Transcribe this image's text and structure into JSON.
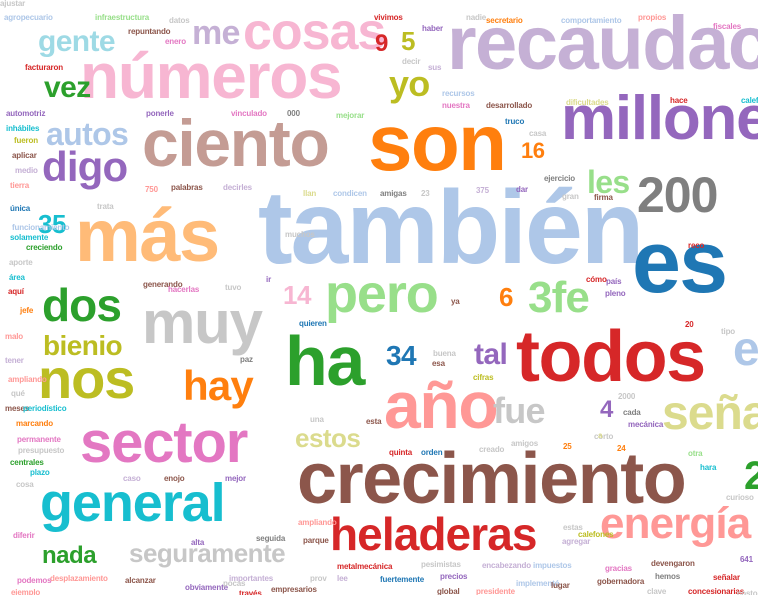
{
  "words": [
    {
      "text": "también",
      "color": "#aec7e8"
    },
    {
      "text": "crecimiento",
      "color": "#8c564b"
    },
    {
      "text": "es",
      "color": "#1f77b4"
    },
    {
      "text": "son",
      "color": "#ff7f0e"
    },
    {
      "text": "todos",
      "color": "#d62728"
    },
    {
      "text": "ciento",
      "color": "#c49c94"
    },
    {
      "text": "más",
      "color": "#ffbb78"
    },
    {
      "text": "números",
      "color": "#f7b6d2"
    },
    {
      "text": "recaudación",
      "color": "#c5b0d5"
    },
    {
      "text": "millones",
      "color": "#9467bd"
    },
    {
      "text": "año",
      "color": "#ff9896"
    },
    {
      "text": "ha",
      "color": "#2ca02c"
    },
    {
      "text": "sector",
      "color": "#e377c2"
    },
    {
      "text": "pero",
      "color": "#98df8a"
    },
    {
      "text": "muy",
      "color": "#c7c7c7"
    },
    {
      "text": "nos",
      "color": "#bcbd22"
    },
    {
      "text": "general",
      "color": "#17becf"
    },
    {
      "text": "200",
      "color": "#7f7f7f"
    },
    {
      "text": "cosas",
      "color": "#f7b6d2"
    },
    {
      "text": "heladeras",
      "color": "#d62728"
    },
    {
      "text": "energía",
      "color": "#ff9896"
    },
    {
      "text": "hay",
      "color": "#ff7f0e"
    },
    {
      "text": "dos",
      "color": "#2ca02c"
    },
    {
      "text": "seguramente",
      "color": "#c7c7c7"
    },
    {
      "text": "señal",
      "color": "#dbdb8d"
    },
    {
      "text": "3fe",
      "color": "#98df8a"
    },
    {
      "text": "digo",
      "color": "#9467bd"
    },
    {
      "text": "autos",
      "color": "#aec7e8"
    },
    {
      "text": "fue",
      "color": "#c7c7c7"
    },
    {
      "text": "me",
      "color": "#c5b0d5"
    },
    {
      "text": "gente",
      "color": "#9edae5"
    },
    {
      "text": "yo",
      "color": "#bcbd22"
    },
    {
      "text": "vez",
      "color": "#2ca02c"
    },
    {
      "text": "bienio",
      "color": "#bcbd22"
    },
    {
      "text": "tal",
      "color": "#9467bd"
    },
    {
      "text": "nada",
      "color": "#2ca02c"
    },
    {
      "text": "estos",
      "color": "#dbdb8d"
    },
    {
      "text": "les",
      "color": "#98df8a"
    },
    {
      "text": "35",
      "color": "#17becf"
    },
    {
      "text": "34",
      "color": "#1f77b4"
    },
    {
      "text": "16",
      "color": "#ff7f0e"
    },
    {
      "text": "14",
      "color": "#f7b6d2"
    },
    {
      "text": "9",
      "color": "#d62728"
    },
    {
      "text": "5",
      "color": "#bcbd22"
    },
    {
      "text": "6",
      "color": "#ff7f0e"
    },
    {
      "text": "4",
      "color": "#9467bd"
    },
    {
      "text": "e",
      "color": "#aec7e8"
    },
    {
      "text": "agropecuario",
      "color": "#aec7e8"
    },
    {
      "text": "infraestructura",
      "color": "#98df8a"
    },
    {
      "text": "datos",
      "color": "#c7c7c7"
    },
    {
      "text": "vivimos",
      "color": "#d62728"
    },
    {
      "text": "recursos",
      "color": "#aec7e8"
    },
    {
      "text": "nadie",
      "color": "#c7c7c7"
    },
    {
      "text": "secretario",
      "color": "#ff7f0e"
    },
    {
      "text": "comportamiento",
      "color": "#aec7e8"
    },
    {
      "text": "propios",
      "color": "#ff9896"
    },
    {
      "text": "fiscales",
      "color": "#e377c2"
    },
    {
      "text": "repuntando",
      "color": "#8c564b"
    },
    {
      "text": "enero",
      "color": "#e377c2"
    },
    {
      "text": "haber",
      "color": "#9467bd"
    },
    {
      "text": "decir",
      "color": "#c7c7c7"
    },
    {
      "text": "sus",
      "color": "#c5b0d5"
    },
    {
      "text": "facturaron",
      "color": "#d62728"
    },
    {
      "text": "automotriz",
      "color": "#9467bd"
    },
    {
      "text": "inhábiles",
      "color": "#17becf"
    },
    {
      "text": "fueron",
      "color": "#bcbd22"
    },
    {
      "text": "aplicar",
      "color": "#8c564b"
    },
    {
      "text": "medio",
      "color": "#c5b0d5"
    },
    {
      "text": "tierra",
      "color": "#ff9896"
    },
    {
      "text": "ponerle",
      "color": "#9467bd"
    },
    {
      "text": "vinculado",
      "color": "#e377c2"
    },
    {
      "text": "000",
      "color": "#7f7f7f"
    },
    {
      "text": "mejorar",
      "color": "#98df8a"
    },
    {
      "text": "nuestra",
      "color": "#e377c2"
    },
    {
      "text": "desarrollado",
      "color": "#8c564b"
    },
    {
      "text": "truco",
      "color": "#1f77b4"
    },
    {
      "text": "casa",
      "color": "#c7c7c7"
    },
    {
      "text": "dificultades",
      "color": "#dbdb8d"
    },
    {
      "text": "hace",
      "color": "#d62728"
    },
    {
      "text": "calefores",
      "color": "#17becf"
    },
    {
      "text": "ejercicio",
      "color": "#7f7f7f"
    },
    {
      "text": "gran",
      "color": "#c7c7c7"
    },
    {
      "text": "750",
      "color": "#ff9896"
    },
    {
      "text": "palabras",
      "color": "#8c564b"
    },
    {
      "text": "decirles",
      "color": "#c5b0d5"
    },
    {
      "text": "llan",
      "color": "#dbdb8d"
    },
    {
      "text": "condicen",
      "color": "#aec7e8"
    },
    {
      "text": "amigas",
      "color": "#7f7f7f"
    },
    {
      "text": "23",
      "color": "#c7c7c7"
    },
    {
      "text": "375",
      "color": "#c5b0d5"
    },
    {
      "text": "dar",
      "color": "#9467bd"
    },
    {
      "text": "firma",
      "color": "#8c564b"
    },
    {
      "text": "única",
      "color": "#1f77b4"
    },
    {
      "text": "funcionamiento",
      "color": "#aec7e8"
    },
    {
      "text": "trata",
      "color": "#c7c7c7"
    },
    {
      "text": "solamente",
      "color": "#17becf"
    },
    {
      "text": "creciendo",
      "color": "#2ca02c"
    },
    {
      "text": "aporte",
      "color": "#c7c7c7"
    },
    {
      "text": "área",
      "color": "#17becf"
    },
    {
      "text": "aquí",
      "color": "#d62728"
    },
    {
      "text": "jefe",
      "color": "#ff7f0e"
    },
    {
      "text": "generando",
      "color": "#8c564b"
    },
    {
      "text": "hacerlas",
      "color": "#e377c2"
    },
    {
      "text": "tuvo",
      "color": "#c7c7c7"
    },
    {
      "text": "ir",
      "color": "#9467bd"
    },
    {
      "text": "ya",
      "color": "#8c564b"
    },
    {
      "text": "cómo",
      "color": "#d62728"
    },
    {
      "text": "país",
      "color": "#9467bd"
    },
    {
      "text": "pleno",
      "color": "#9467bd"
    },
    {
      "text": "quieren",
      "color": "#1f77b4"
    },
    {
      "text": "buena",
      "color": "#c7c7c7"
    },
    {
      "text": "esa",
      "color": "#8c564b"
    },
    {
      "text": "20",
      "color": "#d62728"
    },
    {
      "text": "tipo",
      "color": "#c7c7c7"
    },
    {
      "text": "malo",
      "color": "#ff9896"
    },
    {
      "text": "tener",
      "color": "#c5b0d5"
    },
    {
      "text": "paz",
      "color": "#7f7f7f"
    },
    {
      "text": "cifras",
      "color": "#bcbd22"
    },
    {
      "text": "ampliando",
      "color": "#ff9896"
    },
    {
      "text": "qué",
      "color": "#c7c7c7"
    },
    {
      "text": "meses",
      "color": "#8c564b"
    },
    {
      "text": "periodístico",
      "color": "#17becf"
    },
    {
      "text": "marcando",
      "color": "#ff7f0e"
    },
    {
      "text": "permanente",
      "color": "#e377c2"
    },
    {
      "text": "presupuesto",
      "color": "#c7c7c7"
    },
    {
      "text": "centrales",
      "color": "#2ca02c"
    },
    {
      "text": "plazo",
      "color": "#17becf"
    },
    {
      "text": "cosa",
      "color": "#c7c7c7"
    },
    {
      "text": "una",
      "color": "#c7c7c7"
    },
    {
      "text": "esta",
      "color": "#8c564b"
    },
    {
      "text": "cada",
      "color": "#7f7f7f"
    },
    {
      "text": "mecánica",
      "color": "#9467bd"
    },
    {
      "text": "corto",
      "color": "#c7c7c7"
    },
    {
      "text": "amigos",
      "color": "#c7c7c7"
    },
    {
      "text": "24",
      "color": "#ff7f0e"
    },
    {
      "text": "quinta",
      "color": "#d62728"
    },
    {
      "text": "orden",
      "color": "#1f77b4"
    },
    {
      "text": "creado",
      "color": "#c7c7c7"
    },
    {
      "text": "otra",
      "color": "#98df8a"
    },
    {
      "text": "hara",
      "color": "#17becf"
    },
    {
      "text": "curioso",
      "color": "#c7c7c7"
    },
    {
      "text": "caso",
      "color": "#c5b0d5"
    },
    {
      "text": "enojo",
      "color": "#8c564b"
    },
    {
      "text": "mejor",
      "color": "#9467bd"
    },
    {
      "text": "diferir",
      "color": "#e377c2"
    },
    {
      "text": "ampliando",
      "color": "#ff9896"
    },
    {
      "text": "agregar",
      "color": "#c5b0d5"
    },
    {
      "text": "calefones",
      "color": "#bcbd22"
    },
    {
      "text": "desplazamiento",
      "color": "#ff9896"
    },
    {
      "text": "alcanzar",
      "color": "#8c564b"
    },
    {
      "text": "obviamente",
      "color": "#9467bd"
    },
    {
      "text": "importantes",
      "color": "#c5b0d5"
    },
    {
      "text": "empresarios",
      "color": "#8c564b"
    },
    {
      "text": "fuertemente",
      "color": "#1f77b4"
    },
    {
      "text": "metalmecánica",
      "color": "#d62728"
    },
    {
      "text": "pesimistas",
      "color": "#c7c7c7"
    },
    {
      "text": "precios",
      "color": "#9467bd"
    },
    {
      "text": "encabezando",
      "color": "#c5b0d5"
    },
    {
      "text": "presidente",
      "color": "#ff9896"
    },
    {
      "text": "impuestos",
      "color": "#aec7e8"
    },
    {
      "text": "gracias",
      "color": "#e377c2"
    },
    {
      "text": "gobernadora",
      "color": "#8c564b"
    },
    {
      "text": "devengaron",
      "color": "#8c564b"
    },
    {
      "text": "hemos",
      "color": "#7f7f7f"
    },
    {
      "text": "señalar",
      "color": "#d62728"
    },
    {
      "text": "concesionarias",
      "color": "#d62728"
    },
    {
      "text": "costo",
      "color": "#c7c7c7"
    },
    {
      "text": "podemos",
      "color": "#e377c2"
    },
    {
      "text": "ejemplo",
      "color": "#ff9896"
    },
    {
      "text": "implementó",
      "color": "#aec7e8"
    },
    {
      "text": "lugar",
      "color": "#8c564b"
    },
    {
      "text": "global",
      "color": "#8c564b"
    },
    {
      "text": "clave",
      "color": "#c7c7c7"
    },
    {
      "text": "seguida",
      "color": "#7f7f7f"
    },
    {
      "text": "parque",
      "color": "#8c564b"
    },
    {
      "text": "alta",
      "color": "#9467bd"
    },
    {
      "text": "pocas",
      "color": "#c7c7c7"
    },
    {
      "text": "través",
      "color": "#d62728"
    },
    {
      "text": "prov",
      "color": "#c7c7c7"
    },
    {
      "text": "lee",
      "color": "#c5b0d5"
    },
    {
      "text": "estas",
      "color": "#c7c7c7"
    },
    {
      "text": "muchos",
      "color": "#c7c7c7"
    },
    {
      "text": "2",
      "color": "#2ca02c"
    },
    {
      "text": "a",
      "color": "#dbdb8d"
    },
    {
      "text": "2000",
      "color": "#c7c7c7"
    },
    {
      "text": "641",
      "color": "#9467bd"
    },
    {
      "text": "reco",
      "color": "#d62728"
    },
    {
      "text": "25",
      "color": "#ff7f0e"
    },
    {
      "text": "ajustar",
      "color": "#c7c7c7"
    }
  ]
}
